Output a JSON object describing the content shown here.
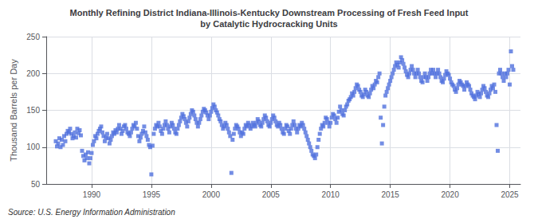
{
  "chart_data": {
    "type": "scatter",
    "title": "Monthly Refining District Indiana-Illinois-Kentucky Downstream Processing of Fresh Feed Input\nby Catalytic Hydrocracking Units",
    "ylabel": "Thousand Barrels per Day",
    "annotations": [
      "Source: U.S. Energy Information Administration"
    ],
    "marker": "square",
    "grid": true,
    "xlim": [
      1986.2,
      2025.9
    ],
    "xticks": [
      1990,
      1995,
      2000,
      2005,
      2010,
      2015,
      2020,
      2025
    ],
    "ylim": [
      50,
      250
    ],
    "yticks": [
      50,
      100,
      150,
      200,
      250
    ],
    "x": [
      1987.0,
      1987.1,
      1987.2,
      1987.3,
      1987.4,
      1987.5,
      1987.6,
      1987.7,
      1987.8,
      1987.9,
      1988.0,
      1988.1,
      1988.2,
      1988.3,
      1988.4,
      1988.5,
      1988.6,
      1988.7,
      1988.8,
      1988.9,
      1989.0,
      1989.1,
      1989.2,
      1989.3,
      1989.4,
      1989.5,
      1989.6,
      1989.7,
      1989.8,
      1989.9,
      1990.0,
      1990.1,
      1990.2,
      1990.3,
      1990.4,
      1990.5,
      1990.6,
      1990.7,
      1990.8,
      1990.9,
      1991.0,
      1991.1,
      1991.2,
      1991.3,
      1991.4,
      1991.5,
      1991.6,
      1991.7,
      1991.8,
      1991.9,
      1992.0,
      1992.1,
      1992.2,
      1992.3,
      1992.4,
      1992.5,
      1992.6,
      1992.7,
      1992.8,
      1992.9,
      1993.0,
      1993.1,
      1993.2,
      1993.3,
      1993.4,
      1993.5,
      1993.6,
      1993.7,
      1993.8,
      1993.9,
      1994.0,
      1994.1,
      1994.2,
      1994.3,
      1994.4,
      1994.5,
      1994.6,
      1994.7,
      1994.8,
      1994.9,
      1995.0,
      1995.1,
      1995.2,
      1995.3,
      1995.4,
      1995.5,
      1995.6,
      1995.7,
      1995.8,
      1995.9,
      1996.0,
      1996.1,
      1996.2,
      1996.3,
      1996.4,
      1996.5,
      1996.6,
      1996.7,
      1996.8,
      1996.9,
      1997.0,
      1997.1,
      1997.2,
      1997.3,
      1997.4,
      1997.5,
      1997.6,
      1997.7,
      1997.8,
      1997.9,
      1998.0,
      1998.1,
      1998.2,
      1998.3,
      1998.4,
      1998.5,
      1998.6,
      1998.7,
      1998.8,
      1998.9,
      1999.0,
      1999.1,
      1999.2,
      1999.3,
      1999.4,
      1999.5,
      1999.6,
      1999.7,
      1999.8,
      1999.9,
      2000.0,
      2000.1,
      2000.2,
      2000.3,
      2000.4,
      2000.5,
      2000.6,
      2000.7,
      2000.8,
      2000.9,
      2001.0,
      2001.1,
      2001.2,
      2001.3,
      2001.4,
      2001.5,
      2001.6,
      2001.7,
      2001.8,
      2001.9,
      2002.0,
      2002.1,
      2002.2,
      2002.3,
      2002.4,
      2002.5,
      2002.6,
      2002.7,
      2002.8,
      2002.9,
      2003.0,
      2003.1,
      2003.2,
      2003.3,
      2003.4,
      2003.5,
      2003.6,
      2003.7,
      2003.8,
      2003.9,
      2004.0,
      2004.1,
      2004.2,
      2004.3,
      2004.4,
      2004.5,
      2004.6,
      2004.7,
      2004.8,
      2004.9,
      2005.0,
      2005.1,
      2005.2,
      2005.3,
      2005.4,
      2005.5,
      2005.6,
      2005.7,
      2005.8,
      2005.9,
      2006.0,
      2006.1,
      2006.2,
      2006.3,
      2006.4,
      2006.5,
      2006.6,
      2006.7,
      2006.8,
      2006.9,
      2007.0,
      2007.1,
      2007.2,
      2007.3,
      2007.4,
      2007.5,
      2007.6,
      2007.7,
      2007.8,
      2007.9,
      2008.0,
      2008.1,
      2008.2,
      2008.3,
      2008.4,
      2008.5,
      2008.6,
      2008.7,
      2008.8,
      2008.9,
      2009.0,
      2009.1,
      2009.2,
      2009.3,
      2009.4,
      2009.5,
      2009.6,
      2009.7,
      2009.8,
      2009.9,
      2010.0,
      2010.1,
      2010.2,
      2010.3,
      2010.4,
      2010.5,
      2010.6,
      2010.7,
      2010.8,
      2010.9,
      2011.0,
      2011.1,
      2011.2,
      2011.3,
      2011.4,
      2011.5,
      2011.6,
      2011.7,
      2011.8,
      2011.9,
      2012.0,
      2012.1,
      2012.2,
      2012.3,
      2012.4,
      2012.5,
      2012.6,
      2012.7,
      2012.8,
      2012.9,
      2013.0,
      2013.1,
      2013.2,
      2013.3,
      2013.4,
      2013.5,
      2013.6,
      2013.7,
      2013.8,
      2013.9,
      2014.0,
      2014.1,
      2014.2,
      2014.3,
      2014.4,
      2014.5,
      2014.6,
      2014.7,
      2014.8,
      2014.9,
      2015.0,
      2015.1,
      2015.2,
      2015.3,
      2015.4,
      2015.5,
      2015.6,
      2015.7,
      2015.8,
      2015.9,
      2016.0,
      2016.1,
      2016.2,
      2016.3,
      2016.4,
      2016.5,
      2016.6,
      2016.7,
      2016.8,
      2016.9,
      2017.0,
      2017.1,
      2017.2,
      2017.3,
      2017.4,
      2017.5,
      2017.6,
      2017.7,
      2017.8,
      2017.9,
      2018.0,
      2018.1,
      2018.2,
      2018.3,
      2018.4,
      2018.5,
      2018.6,
      2018.7,
      2018.8,
      2018.9,
      2019.0,
      2019.1,
      2019.2,
      2019.3,
      2019.4,
      2019.5,
      2019.6,
      2019.7,
      2019.8,
      2019.9,
      2020.0,
      2020.1,
      2020.2,
      2020.3,
      2020.4,
      2020.5,
      2020.6,
      2020.7,
      2020.8,
      2020.9,
      2021.0,
      2021.1,
      2021.2,
      2021.3,
      2021.4,
      2021.5,
      2021.6,
      2021.7,
      2021.8,
      2021.9,
      2022.0,
      2022.1,
      2022.2,
      2022.3,
      2022.4,
      2022.5,
      2022.6,
      2022.7,
      2022.8,
      2022.9,
      2023.0,
      2023.1,
      2023.2,
      2023.3,
      2023.4,
      2023.5,
      2023.6,
      2023.7,
      2023.8,
      2023.9,
      2024.0,
      2024.1,
      2024.2,
      2024.3,
      2024.4,
      2024.5,
      2024.6,
      2024.7,
      2024.8,
      2024.9,
      2025.0,
      2025.1,
      2025.2,
      2025.3
    ],
    "values": [
      108,
      101,
      105,
      112,
      100,
      110,
      103,
      115,
      108,
      118,
      122,
      120,
      125,
      118,
      112,
      115,
      120,
      113,
      125,
      119,
      123,
      116,
      95,
      88,
      82,
      90,
      85,
      93,
      78,
      85,
      92,
      103,
      108,
      115,
      112,
      118,
      122,
      125,
      128,
      120,
      115,
      108,
      113,
      118,
      112,
      105,
      110,
      115,
      120,
      118,
      123,
      120,
      125,
      130,
      125,
      118,
      122,
      128,
      130,
      125,
      120,
      118,
      115,
      120,
      125,
      130,
      128,
      133,
      125,
      115,
      108,
      113,
      118,
      122,
      128,
      120,
      115,
      110,
      103,
      100,
      63,
      102,
      118,
      125,
      130,
      128,
      133,
      128,
      122,
      118,
      125,
      130,
      135,
      130,
      125,
      120,
      128,
      133,
      130,
      125,
      120,
      118,
      125,
      130,
      135,
      140,
      145,
      142,
      138,
      133,
      128,
      135,
      140,
      145,
      150,
      148,
      143,
      138,
      133,
      128,
      133,
      138,
      143,
      148,
      152,
      150,
      147,
      143,
      138,
      143,
      148,
      153,
      158,
      155,
      150,
      147,
      143,
      138,
      135,
      130,
      125,
      128,
      133,
      130,
      125,
      120,
      115,
      65,
      110,
      118,
      125,
      130,
      128,
      125,
      120,
      115,
      120,
      118,
      125,
      130,
      128,
      133,
      130,
      125,
      128,
      133,
      130,
      128,
      133,
      138,
      135,
      130,
      128,
      133,
      138,
      143,
      140,
      135,
      130,
      128,
      133,
      138,
      143,
      140,
      135,
      130,
      128,
      133,
      130,
      125,
      120,
      118,
      125,
      130,
      128,
      122,
      118,
      125,
      130,
      135,
      130,
      125,
      120,
      125,
      130,
      128,
      133,
      130,
      125,
      120,
      115,
      110,
      105,
      100,
      95,
      90,
      88,
      85,
      90,
      100,
      110,
      118,
      125,
      130,
      128,
      133,
      140,
      138,
      133,
      128,
      133,
      140,
      145,
      143,
      138,
      133,
      140,
      148,
      155,
      150,
      145,
      143,
      150,
      155,
      158,
      163,
      165,
      168,
      173,
      170,
      175,
      180,
      185,
      183,
      178,
      175,
      170,
      168,
      172,
      178,
      175,
      170,
      168,
      173,
      178,
      183,
      180,
      185,
      190,
      188,
      195,
      200,
      140,
      105,
      130,
      155,
      170,
      175,
      180,
      185,
      190,
      195,
      200,
      205,
      210,
      215,
      212,
      208,
      215,
      222,
      218,
      213,
      208,
      203,
      198,
      195,
      200,
      205,
      210,
      205,
      200,
      195,
      200,
      205,
      200,
      195,
      190,
      188,
      195,
      200,
      195,
      190,
      195,
      200,
      205,
      200,
      205,
      200,
      195,
      200,
      205,
      200,
      195,
      190,
      188,
      193,
      198,
      203,
      200,
      198,
      193,
      188,
      185,
      183,
      178,
      175,
      180,
      185,
      190,
      188,
      185,
      183,
      178,
      183,
      188,
      185,
      183,
      178,
      173,
      170,
      168,
      165,
      170,
      175,
      172,
      168,
      173,
      178,
      183,
      180,
      175,
      170,
      168,
      173,
      178,
      183,
      180,
      185,
      175,
      130,
      95,
      200,
      205,
      200,
      195,
      190,
      200,
      195,
      200,
      205,
      185,
      230,
      210,
      205
    ]
  }
}
